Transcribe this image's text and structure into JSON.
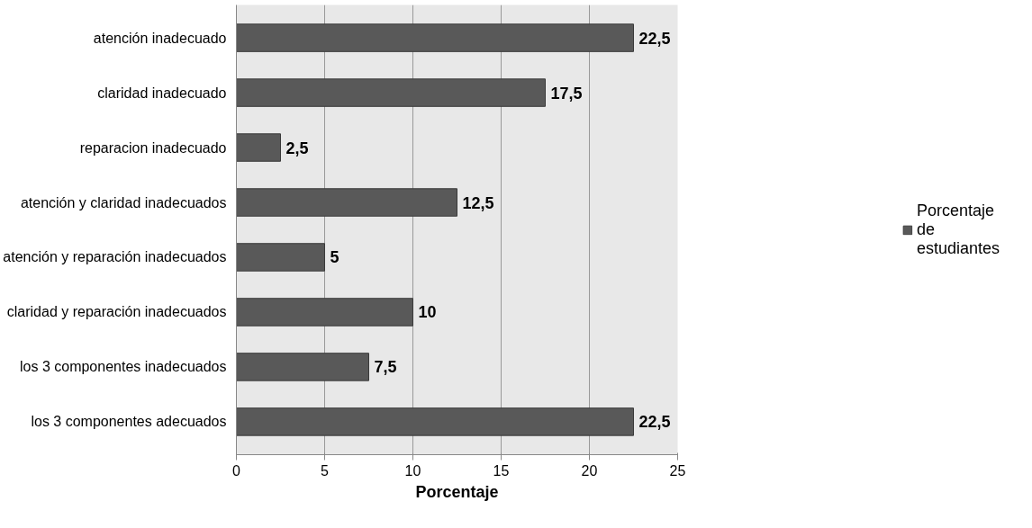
{
  "chart_data": {
    "type": "bar",
    "orientation": "horizontal",
    "xlabel": "Porcentaje",
    "categories": [
      "atención inadecuado",
      "claridad inadecuado",
      "reparacion inadecuado",
      "atención y claridad inadecuados",
      "atención y reparación inadecuados",
      "claridad y reparación inadecuados",
      "los 3 componentes inadecuados",
      "los 3 componentes adecuados"
    ],
    "series": [
      {
        "name": "Porcentaje de estudiantes",
        "color": "#595959",
        "values": [
          22.5,
          17.5,
          2.5,
          12.5,
          5,
          10,
          7.5,
          22.5
        ],
        "value_labels": [
          "22,5",
          "17,5",
          "2,5",
          "12,5",
          "5",
          "10",
          "7,5",
          "22,5"
        ]
      }
    ],
    "xlim": [
      0,
      25
    ],
    "xticks": [
      0,
      5,
      10,
      15,
      20,
      25
    ],
    "grid": "x",
    "legend": "right"
  }
}
